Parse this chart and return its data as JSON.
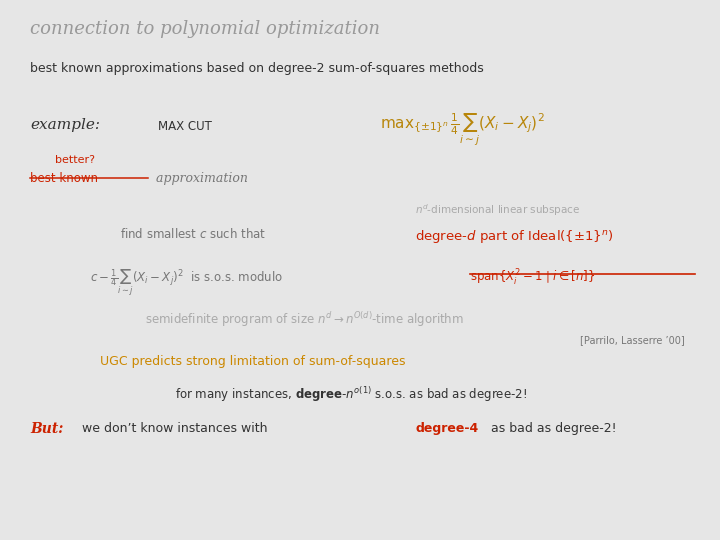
{
  "bg_color": "#e6e6e6",
  "title": "connection to polynomial optimization",
  "title_color": "#999999",
  "line1": "best known approximations based on degree-2 sum-of-squares methods",
  "line1_color": "#333333",
  "gray_text": "#777777",
  "light_gray": "#aaaaaa",
  "red": "#cc2200",
  "gold": "#b8860b",
  "dark": "#333333",
  "reference": "[Parrilo, Lasserre ’00]",
  "ugc_color": "#cc8800"
}
